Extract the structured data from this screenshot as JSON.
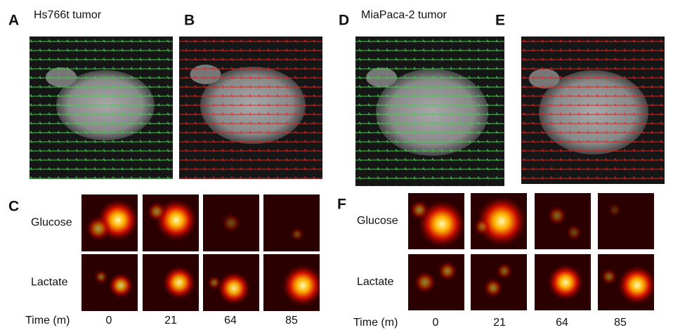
{
  "panels": [
    {
      "label": "A",
      "title": "Hs766t tumor"
    },
    {
      "label": "B"
    },
    {
      "label": "C",
      "rows": [
        "Glucose",
        "Lactate"
      ],
      "time_label": "Time (m)",
      "times": [
        0,
        21,
        64,
        85
      ]
    },
    {
      "label": "D",
      "title": "MiaPaca-2 tumor"
    },
    {
      "label": "E"
    },
    {
      "label": "F",
      "rows": [
        "Glucose",
        "Lactate"
      ],
      "time_label": "Time (m)",
      "times": [
        0,
        21,
        64,
        85
      ]
    }
  ]
}
